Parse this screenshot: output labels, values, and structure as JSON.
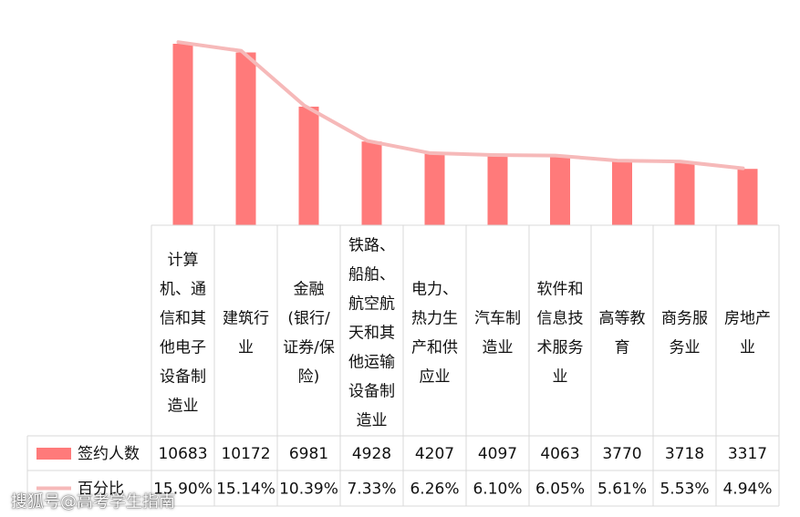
{
  "chart_data": {
    "type": "bar",
    "categories": [
      "计算\n机、通\n信和其\n他电子\n设备制\n造业",
      "建筑行\n业",
      "金融\n(银行/\n证券/保\n险)",
      "铁路、\n船舶、\n航空航\n天和其\n他运输\n设备制\n造业",
      "电力、\n热力生\n产和供\n应业",
      "汽车制\n造业",
      "软件和\n信息技\n术服务\n业",
      "高等教\n育",
      "商务服\n务业",
      "房地产\n业"
    ],
    "series": [
      {
        "name": "签约人数",
        "values": [
          10683,
          10172,
          6981,
          4928,
          4207,
          4097,
          4063,
          3770,
          3718,
          3317
        ],
        "labels": [
          "10683",
          "10172",
          "6981",
          "4928",
          "4207",
          "4097",
          "4063",
          "3770",
          "3718",
          "3317"
        ]
      },
      {
        "name": "百分比",
        "values": [
          15.9,
          15.14,
          10.39,
          7.33,
          6.26,
          6.1,
          6.05,
          5.61,
          5.53,
          4.94
        ],
        "labels": [
          "15.90%",
          "15.14%",
          "10.39%",
          "7.33%",
          "6.26%",
          "6.10%",
          "6.05%",
          "5.61%",
          "5.53%",
          "4.94%"
        ]
      }
    ],
    "bar_color": "#FF7A7A",
    "line_color": "#F6B9B9",
    "legend": "data-table",
    "grid": false,
    "ylim": [
      0,
      12000
    ]
  },
  "watermark": "搜狐号@高考学生指南"
}
